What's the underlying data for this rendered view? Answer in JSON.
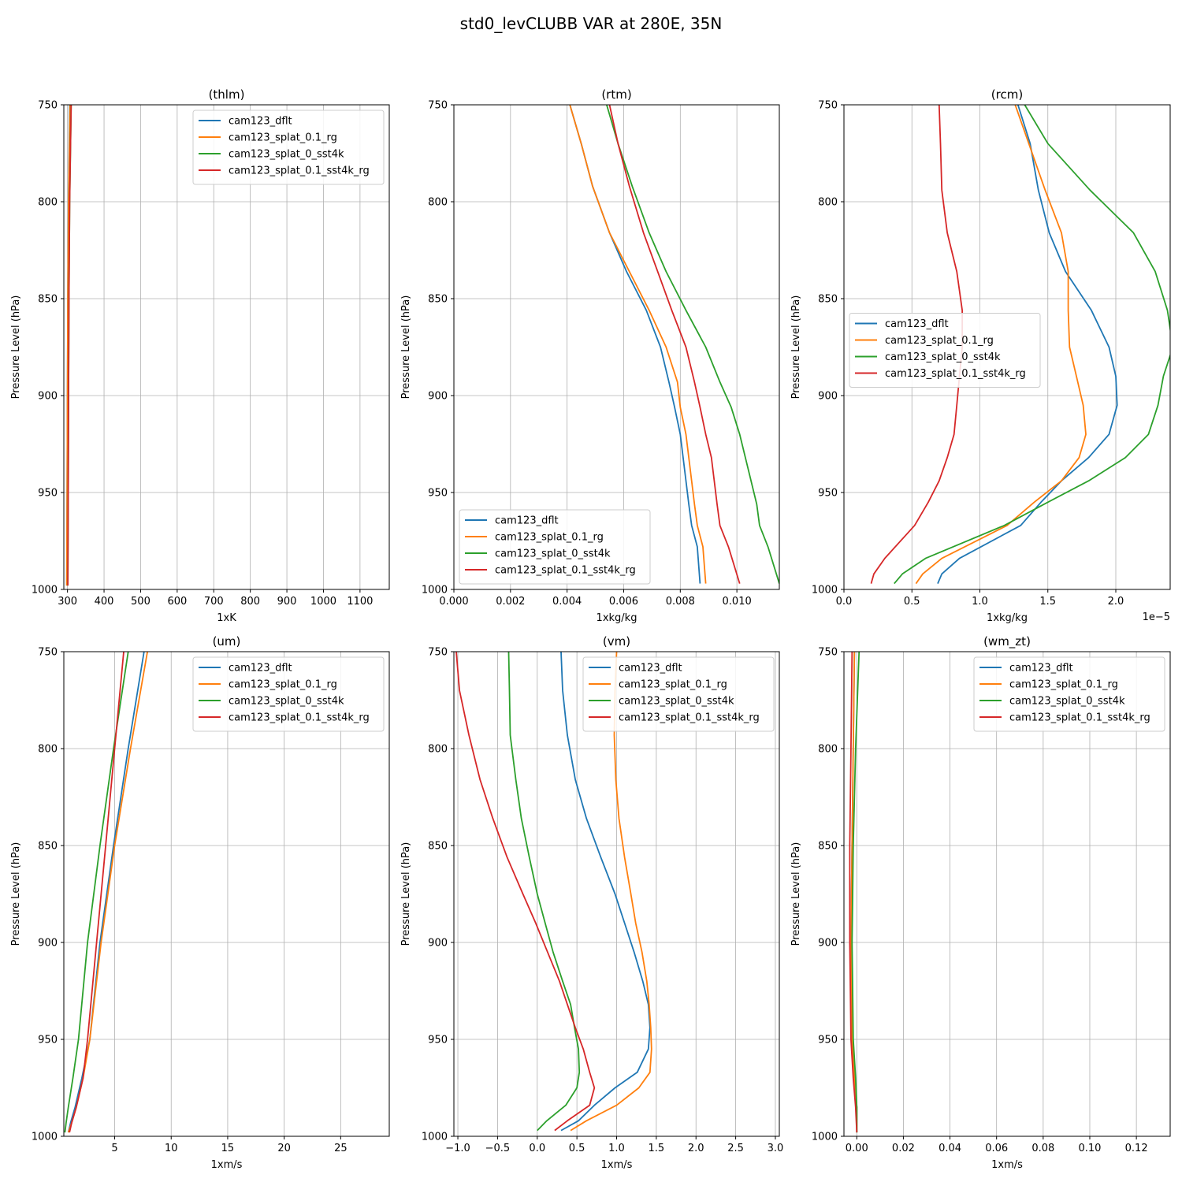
{
  "figure": {
    "title": "std0_levCLUBB VAR at 280E, 35N"
  },
  "colors": {
    "cam123_dflt": "#1f77b4",
    "cam123_splat_0.1_rg": "#ff7f0e",
    "cam123_splat_0_sst4k": "#2ca02c",
    "cam123_splat_0.1_sst4k_rg": "#d62728"
  },
  "chart_data": [
    {
      "type": "line",
      "title": "(thlm)",
      "xlabel": "1xK",
      "ylabel": "Pressure Level (hPa)",
      "xlim": [
        290,
        1180
      ],
      "ylim": [
        1000,
        750
      ],
      "xticks": [
        300,
        400,
        500,
        600,
        700,
        800,
        900,
        1000,
        1100
      ],
      "xtick_labels": [
        "300",
        "400",
        "500",
        "600",
        "700",
        "800",
        "900",
        "1000",
        "1100"
      ],
      "yticks": [
        750,
        800,
        850,
        900,
        950,
        1000
      ],
      "ytick_labels": [
        "750",
        "800",
        "850",
        "900",
        "950",
        "1000"
      ],
      "offset_text": "",
      "grid": true,
      "legend": "upper right",
      "series": [
        {
          "name": "cam123_dflt",
          "x": [
            306,
            303,
            301,
            300,
            299,
            298
          ],
          "y": [
            750,
            800,
            850,
            900,
            950,
            998
          ]
        },
        {
          "name": "cam123_splat_0.1_rg",
          "x": [
            307,
            303,
            301,
            300,
            299,
            298
          ],
          "y": [
            750,
            800,
            850,
            900,
            950,
            998
          ]
        },
        {
          "name": "cam123_splat_0_sst4k",
          "x": [
            310,
            306,
            304,
            303,
            302,
            301
          ],
          "y": [
            750,
            800,
            850,
            900,
            950,
            998
          ]
        },
        {
          "name": "cam123_splat_0.1_sst4k_rg",
          "x": [
            310,
            306,
            304,
            303,
            302,
            301
          ],
          "y": [
            750,
            800,
            850,
            900,
            950,
            998
          ]
        }
      ]
    },
    {
      "type": "line",
      "title": "(rtm)",
      "xlabel": "1xkg/kg",
      "ylabel": "Pressure Level (hPa)",
      "xlim": [
        0,
        0.0115
      ],
      "ylim": [
        1000,
        750
      ],
      "xticks": [
        0,
        0.002,
        0.004,
        0.006,
        0.008,
        0.01
      ],
      "xtick_labels": [
        "0.000",
        "0.002",
        "0.004",
        "0.006",
        "0.008",
        "0.010"
      ],
      "yticks": [
        750,
        800,
        850,
        900,
        950,
        1000
      ],
      "ytick_labels": [
        "750",
        "800",
        "850",
        "900",
        "950",
        "1000"
      ],
      "offset_text": "",
      "grid": true,
      "legend": "lower left",
      "series": [
        {
          "name": "cam123_dflt",
          "x": [
            0.0041,
            0.0045,
            0.0049,
            0.0055,
            0.0061,
            0.0068,
            0.0073,
            0.0076,
            0.0078,
            0.008,
            0.0081,
            0.0082,
            0.0083,
            0.0084,
            0.0086,
            0.0087
          ],
          "y": [
            750,
            770,
            792,
            816,
            836,
            856,
            875,
            893,
            906,
            920,
            932,
            944,
            956,
            967,
            978,
            997
          ]
        },
        {
          "name": "cam123_splat_0.1_rg",
          "x": [
            0.0041,
            0.0045,
            0.0049,
            0.0055,
            0.0062,
            0.0069,
            0.0075,
            0.0079,
            0.008,
            0.0082,
            0.0083,
            0.0084,
            0.0085,
            0.0086,
            0.0088,
            0.0089
          ],
          "y": [
            750,
            770,
            792,
            816,
            836,
            856,
            875,
            893,
            906,
            920,
            932,
            944,
            956,
            967,
            978,
            997
          ]
        },
        {
          "name": "cam123_splat_0_sst4k",
          "x": [
            0.0054,
            0.0058,
            0.0063,
            0.0069,
            0.0075,
            0.0082,
            0.0089,
            0.0094,
            0.0098,
            0.0101,
            0.0103,
            0.0105,
            0.0107,
            0.0108,
            0.0111,
            0.0115
          ],
          "y": [
            750,
            770,
            792,
            816,
            836,
            856,
            875,
            893,
            906,
            920,
            932,
            944,
            956,
            967,
            978,
            997
          ]
        },
        {
          "name": "cam123_splat_0.1_sst4k_rg",
          "x": [
            0.0055,
            0.0058,
            0.0062,
            0.0067,
            0.0072,
            0.0077,
            0.0082,
            0.0085,
            0.0087,
            0.0089,
            0.0091,
            0.0092,
            0.0093,
            0.0094,
            0.0097,
            0.0101
          ],
          "y": [
            750,
            770,
            792,
            816,
            836,
            856,
            875,
            893,
            906,
            920,
            932,
            944,
            956,
            967,
            978,
            997
          ]
        }
      ]
    },
    {
      "type": "line",
      "title": "(rcm)",
      "xlabel": "1xkg/kg",
      "ylabel": "Pressure Level (hPa)",
      "xlim": [
        0,
        2.4e-05
      ],
      "ylim": [
        1000,
        750
      ],
      "xticks": [
        0,
        5e-06,
        1e-05,
        1.5e-05,
        2e-05
      ],
      "xtick_labels": [
        "0.0",
        "0.5",
        "1.0",
        "1.5",
        "2.0"
      ],
      "yticks": [
        750,
        800,
        850,
        900,
        950,
        1000
      ],
      "ytick_labels": [
        "750",
        "800",
        "850",
        "900",
        "950",
        "1000"
      ],
      "offset_text": "1e−5",
      "grid": true,
      "legend": "center left",
      "series": [
        {
          "name": "cam123_dflt",
          "x": [
            1.28e-05,
            1.37e-05,
            1.43e-05,
            1.51e-05,
            1.63e-05,
            1.82e-05,
            1.95e-05,
            2e-05,
            2.01e-05,
            1.95e-05,
            1.8e-05,
            1.6e-05,
            1.45e-05,
            1.3e-05,
            8.5e-06,
            7.2e-06,
            6.9e-06
          ],
          "y": [
            750,
            770,
            794,
            816,
            836,
            856,
            875,
            890,
            905,
            920,
            932,
            944,
            955,
            967,
            984,
            992,
            997
          ]
        },
        {
          "name": "cam123_splat_0.1_rg",
          "x": [
            1.26e-05,
            1.36e-05,
            1.48e-05,
            1.6e-05,
            1.65e-05,
            1.65e-05,
            1.66e-05,
            1.71e-05,
            1.76e-05,
            1.78e-05,
            1.73e-05,
            1.6e-05,
            1.4e-05,
            1.2e-05,
            7.2e-06,
            5.8e-06,
            5.3e-06
          ],
          "y": [
            750,
            770,
            794,
            816,
            836,
            856,
            875,
            890,
            905,
            920,
            932,
            944,
            955,
            967,
            984,
            992,
            997
          ]
        },
        {
          "name": "cam123_splat_0_sst4k",
          "x": [
            1.33e-05,
            1.5e-05,
            1.81e-05,
            2.13e-05,
            2.29e-05,
            2.38e-05,
            2.42e-05,
            2.35e-05,
            2.31e-05,
            2.24e-05,
            2.07e-05,
            1.8e-05,
            1.5e-05,
            1.18e-05,
            6e-06,
            4.3e-06,
            3.7e-06
          ],
          "y": [
            750,
            770,
            794,
            816,
            836,
            856,
            875,
            890,
            905,
            920,
            932,
            944,
            955,
            967,
            984,
            992,
            997
          ]
        },
        {
          "name": "cam123_splat_0.1_sst4k_rg",
          "x": [
            7e-06,
            7.1e-06,
            7.2e-06,
            7.6e-06,
            8.3e-06,
            8.7e-06,
            8.7e-06,
            8.5e-06,
            8.3e-06,
            8.1e-06,
            7.6e-06,
            7e-06,
            6.2e-06,
            5.2e-06,
            3e-06,
            2.2e-06,
            2e-06
          ],
          "y": [
            750,
            770,
            794,
            816,
            836,
            856,
            875,
            890,
            905,
            920,
            932,
            944,
            955,
            967,
            984,
            992,
            997
          ]
        }
      ]
    },
    {
      "type": "line",
      "title": "(um)",
      "xlabel": "1xm/s",
      "ylabel": "Pressure Level (hPa)",
      "xlim": [
        0.5,
        29.3
      ],
      "ylim": [
        1000,
        750
      ],
      "xticks": [
        5,
        10,
        15,
        20,
        25
      ],
      "xtick_labels": [
        "5",
        "10",
        "15",
        "20",
        "25"
      ],
      "yticks": [
        750,
        800,
        850,
        900,
        950,
        1000
      ],
      "ytick_labels": [
        "750",
        "800",
        "850",
        "900",
        "950",
        "1000"
      ],
      "offset_text": "",
      "grid": true,
      "legend": "upper right",
      "series": [
        {
          "name": "cam123_dflt",
          "x": [
            7.6,
            6.2,
            4.9,
            3.7,
            2.8,
            2.1,
            1.5,
            1.1,
            0.9
          ],
          "y": [
            750,
            800,
            850,
            900,
            950,
            970,
            985,
            993,
            998
          ]
        },
        {
          "name": "cam123_splat_0.1_rg",
          "x": [
            7.9,
            6.4,
            5.0,
            3.8,
            2.8,
            2.2,
            1.6,
            1.2,
            0.9
          ],
          "y": [
            750,
            800,
            850,
            900,
            950,
            970,
            985,
            993,
            998
          ]
        },
        {
          "name": "cam123_splat_0_sst4k",
          "x": [
            6.2,
            4.9,
            3.7,
            2.6,
            1.8,
            1.3,
            0.9,
            0.7,
            0.6
          ],
          "y": [
            750,
            800,
            850,
            900,
            950,
            970,
            985,
            993,
            998
          ]
        },
        {
          "name": "cam123_splat_0.1_sst4k_rg",
          "x": [
            5.8,
            5.0,
            4.2,
            3.4,
            2.6,
            2.2,
            1.6,
            1.2,
            1.0
          ],
          "y": [
            750,
            800,
            850,
            900,
            950,
            970,
            985,
            993,
            998
          ]
        }
      ]
    },
    {
      "type": "line",
      "title": "(vm)",
      "xlabel": "1xm/s",
      "ylabel": "Pressure Level (hPa)",
      "xlim": [
        -1.05,
        3.05
      ],
      "ylim": [
        1000,
        750
      ],
      "xticks": [
        -1.0,
        -0.5,
        0.0,
        0.5,
        1.0,
        1.5,
        2.0,
        2.5,
        3.0
      ],
      "xtick_labels": [
        "−1.0",
        "−0.5",
        "0.0",
        "0.5",
        "1.0",
        "1.5",
        "2.0",
        "2.5",
        "3.0"
      ],
      "yticks": [
        750,
        800,
        850,
        900,
        950,
        1000
      ],
      "ytick_labels": [
        "750",
        "800",
        "850",
        "900",
        "950",
        "1000"
      ],
      "offset_text": "",
      "grid": true,
      "legend": "upper right",
      "series": [
        {
          "name": "cam123_dflt",
          "x": [
            0.3,
            0.32,
            0.38,
            0.48,
            0.62,
            0.8,
            0.98,
            1.1,
            1.22,
            1.33,
            1.4,
            1.42,
            1.4,
            1.26,
            0.98,
            0.72,
            0.52,
            0.3
          ],
          "y": [
            750,
            770,
            793,
            816,
            836,
            856,
            875,
            890,
            905,
            920,
            932,
            944,
            955,
            967,
            975,
            984,
            992,
            997
          ]
        },
        {
          "name": "cam123_splat_0.1_rg",
          "x": [
            1.0,
            0.98,
            0.97,
            0.99,
            1.03,
            1.1,
            1.18,
            1.24,
            1.32,
            1.38,
            1.41,
            1.43,
            1.44,
            1.42,
            1.28,
            1.0,
            0.62,
            0.42
          ],
          "y": [
            750,
            770,
            793,
            816,
            836,
            856,
            875,
            890,
            905,
            920,
            932,
            944,
            955,
            967,
            975,
            984,
            992,
            997
          ]
        },
        {
          "name": "cam123_splat_0_sst4k",
          "x": [
            -0.36,
            -0.35,
            -0.34,
            -0.27,
            -0.2,
            -0.1,
            0.0,
            0.1,
            0.2,
            0.32,
            0.42,
            0.47,
            0.52,
            0.53,
            0.5,
            0.36,
            0.12,
            0.0
          ],
          "y": [
            750,
            770,
            793,
            816,
            836,
            856,
            875,
            890,
            905,
            920,
            932,
            944,
            955,
            967,
            975,
            984,
            992,
            997
          ]
        },
        {
          "name": "cam123_splat_0.1_sst4k_rg",
          "x": [
            -1.02,
            -0.98,
            -0.86,
            -0.72,
            -0.56,
            -0.38,
            -0.18,
            -0.02,
            0.13,
            0.28,
            0.38,
            0.48,
            0.58,
            0.66,
            0.72,
            0.66,
            0.38,
            0.22
          ],
          "y": [
            750,
            770,
            793,
            816,
            836,
            856,
            875,
            890,
            905,
            920,
            932,
            944,
            955,
            967,
            975,
            984,
            992,
            997
          ]
        }
      ]
    },
    {
      "type": "line",
      "title": "(wm_zt)",
      "xlabel": "1xm/s",
      "ylabel": "Pressure Level (hPa)",
      "xlim": [
        -0.0055,
        0.1345
      ],
      "ylim": [
        1000,
        750
      ],
      "xticks": [
        0.0,
        0.02,
        0.04,
        0.06,
        0.08,
        0.1,
        0.12
      ],
      "xtick_labels": [
        "0.00",
        "0.02",
        "0.04",
        "0.06",
        "0.08",
        "0.10",
        "0.12"
      ],
      "yticks": [
        750,
        800,
        850,
        900,
        950,
        1000
      ],
      "ytick_labels": [
        "750",
        "800",
        "850",
        "900",
        "950",
        "1000"
      ],
      "offset_text": "",
      "grid": true,
      "legend": "upper right",
      "series": [
        {
          "name": "cam123_dflt",
          "x": [
            -0.001,
            -0.0015,
            -0.002,
            -0.0025,
            -0.002,
            -0.001,
            0.0,
            0.0
          ],
          "y": [
            750,
            800,
            850,
            900,
            950,
            970,
            985,
            998
          ]
        },
        {
          "name": "cam123_splat_0.1_rg",
          "x": [
            -0.001,
            -0.0015,
            -0.002,
            -0.0025,
            -0.002,
            -0.001,
            0.0,
            0.0
          ],
          "y": [
            750,
            800,
            850,
            900,
            950,
            970,
            985,
            998
          ]
        },
        {
          "name": "cam123_splat_0_sst4k",
          "x": [
            0.001,
            -0.0005,
            -0.0015,
            -0.002,
            -0.0015,
            -0.0005,
            0.0,
            0.0
          ],
          "y": [
            750,
            800,
            850,
            900,
            950,
            970,
            985,
            998
          ]
        },
        {
          "name": "cam123_splat_0.1_sst4k_rg",
          "x": [
            -0.002,
            -0.0025,
            -0.003,
            -0.003,
            -0.0025,
            -0.0015,
            -0.0005,
            0.0
          ],
          "y": [
            750,
            800,
            850,
            900,
            950,
            970,
            985,
            998
          ]
        }
      ]
    }
  ]
}
